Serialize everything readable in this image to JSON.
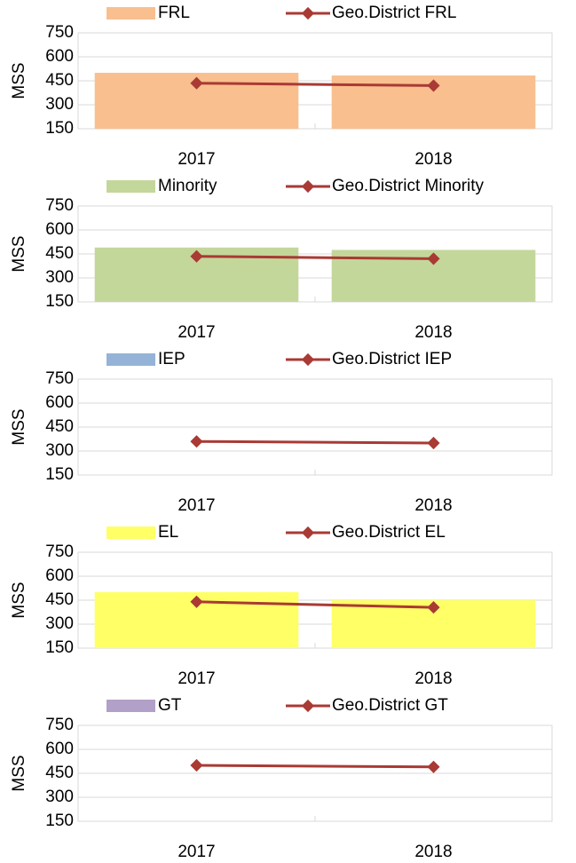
{
  "chart_data": [
    {
      "type": "bar",
      "ylabel": "MSS",
      "categories": [
        "2017",
        "2018"
      ],
      "ylim": [
        150,
        750
      ],
      "yticks": [
        150,
        300,
        450,
        600,
        750
      ],
      "series": [
        {
          "name": "FRL",
          "color": "#f9bf8f",
          "values": [
            500,
            483
          ]
        },
        {
          "name": "Geo.District FRL",
          "color": "#a93a34",
          "type": "line",
          "values": [
            435,
            420
          ]
        }
      ]
    },
    {
      "type": "bar",
      "ylabel": "MSS",
      "categories": [
        "2017",
        "2018"
      ],
      "ylim": [
        150,
        750
      ],
      "yticks": [
        150,
        300,
        450,
        600,
        750
      ],
      "series": [
        {
          "name": "Minority",
          "color": "#c4d79b",
          "values": [
            490,
            475
          ]
        },
        {
          "name": "Geo.District Minority",
          "color": "#a93a34",
          "type": "line",
          "values": [
            435,
            420
          ]
        }
      ]
    },
    {
      "type": "bar",
      "ylabel": "MSS",
      "categories": [
        "2017",
        "2018"
      ],
      "ylim": [
        150,
        750
      ],
      "yticks": [
        150,
        300,
        450,
        600,
        750
      ],
      "series": [
        {
          "name": "IEP",
          "color": "#95b3d7",
          "values": [
            null,
            null
          ]
        },
        {
          "name": "Geo.District IEP",
          "color": "#a93a34",
          "type": "line",
          "values": [
            360,
            350
          ]
        }
      ]
    },
    {
      "type": "bar",
      "ylabel": "MSS",
      "categories": [
        "2017",
        "2018"
      ],
      "ylim": [
        150,
        750
      ],
      "yticks": [
        150,
        300,
        450,
        600,
        750
      ],
      "series": [
        {
          "name": "EL",
          "color": "#ffff66",
          "values": [
            500,
            450
          ]
        },
        {
          "name": "Geo.District EL",
          "color": "#a93a34",
          "type": "line",
          "values": [
            440,
            405
          ]
        }
      ]
    },
    {
      "type": "bar",
      "ylabel": "MSS",
      "categories": [
        "2017",
        "2018"
      ],
      "ylim": [
        150,
        750
      ],
      "yticks": [
        150,
        300,
        450,
        600,
        750
      ],
      "series": [
        {
          "name": "GT",
          "color": "#b1a0c7",
          "values": [
            null,
            null
          ]
        },
        {
          "name": "Geo.District GT",
          "color": "#a93a34",
          "type": "line",
          "values": [
            500,
            490
          ]
        }
      ]
    }
  ]
}
